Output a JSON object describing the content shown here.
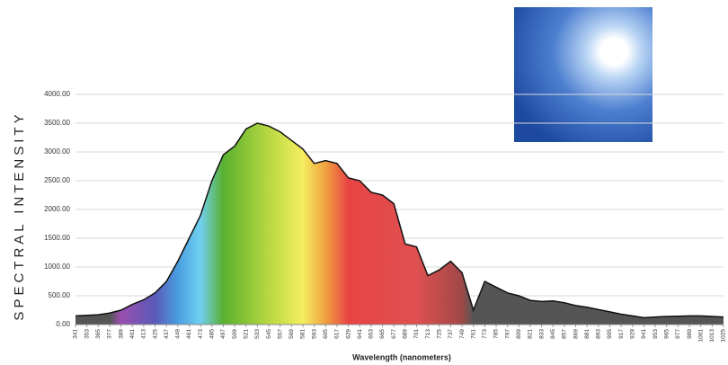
{
  "chart_data": {
    "type": "area",
    "x_label": "Wavelength (nanometers)",
    "y_label": "SPECTRAL INTENSITY",
    "x": [
      341,
      353,
      365,
      377,
      389,
      401,
      413,
      425,
      437,
      449,
      461,
      473,
      485,
      497,
      509,
      521,
      533,
      545,
      557,
      569,
      581,
      593,
      605,
      617,
      629,
      641,
      653,
      665,
      677,
      689,
      701,
      713,
      725,
      737,
      749,
      761,
      773,
      785,
      797,
      809,
      821,
      833,
      845,
      857,
      869,
      881,
      893,
      905,
      917,
      929,
      941,
      953,
      965,
      977,
      989,
      1001,
      1013,
      1025
    ],
    "values": [
      150,
      160,
      170,
      200,
      250,
      350,
      430,
      550,
      750,
      1100,
      1500,
      1900,
      2500,
      2950,
      3100,
      3400,
      3500,
      3450,
      3350,
      3200,
      3050,
      2800,
      2850,
      2800,
      2550,
      2500,
      2300,
      2250,
      2100,
      1400,
      1350,
      850,
      950,
      1100,
      900,
      250,
      750,
      650,
      550,
      500,
      420,
      400,
      410,
      380,
      330,
      300,
      260,
      220,
      180,
      150,
      120,
      130,
      140,
      145,
      150,
      150,
      140,
      130
    ],
    "xlim": [
      341,
      1025
    ],
    "xticks": [
      341,
      353,
      365,
      377,
      389,
      401,
      413,
      425,
      437,
      449,
      461,
      473,
      485,
      497,
      509,
      521,
      533,
      545,
      557,
      569,
      581,
      593,
      605,
      617,
      629,
      641,
      653,
      665,
      677,
      689,
      701,
      713,
      725,
      737,
      749,
      761,
      773,
      785,
      797,
      809,
      821,
      833,
      845,
      857,
      869,
      881,
      893,
      905,
      917,
      929,
      941,
      953,
      965,
      977,
      989,
      1001,
      1013,
      1025
    ],
    "ylim": [
      0,
      4000
    ],
    "yticks": [
      {
        "value": 0,
        "label": "0.00"
      },
      {
        "value": 500,
        "label": "500.00"
      },
      {
        "value": 1000,
        "label": "1000.00"
      },
      {
        "value": 1500,
        "label": "1500.00"
      },
      {
        "value": 2000,
        "label": "2000.00"
      },
      {
        "value": 2500,
        "label": "2500.00"
      },
      {
        "value": 3000,
        "label": "3000.00"
      },
      {
        "value": 3500,
        "label": "3500.00"
      },
      {
        "value": 4000,
        "label": "4000.00"
      }
    ],
    "grid": true,
    "line_color": "#111111"
  }
}
